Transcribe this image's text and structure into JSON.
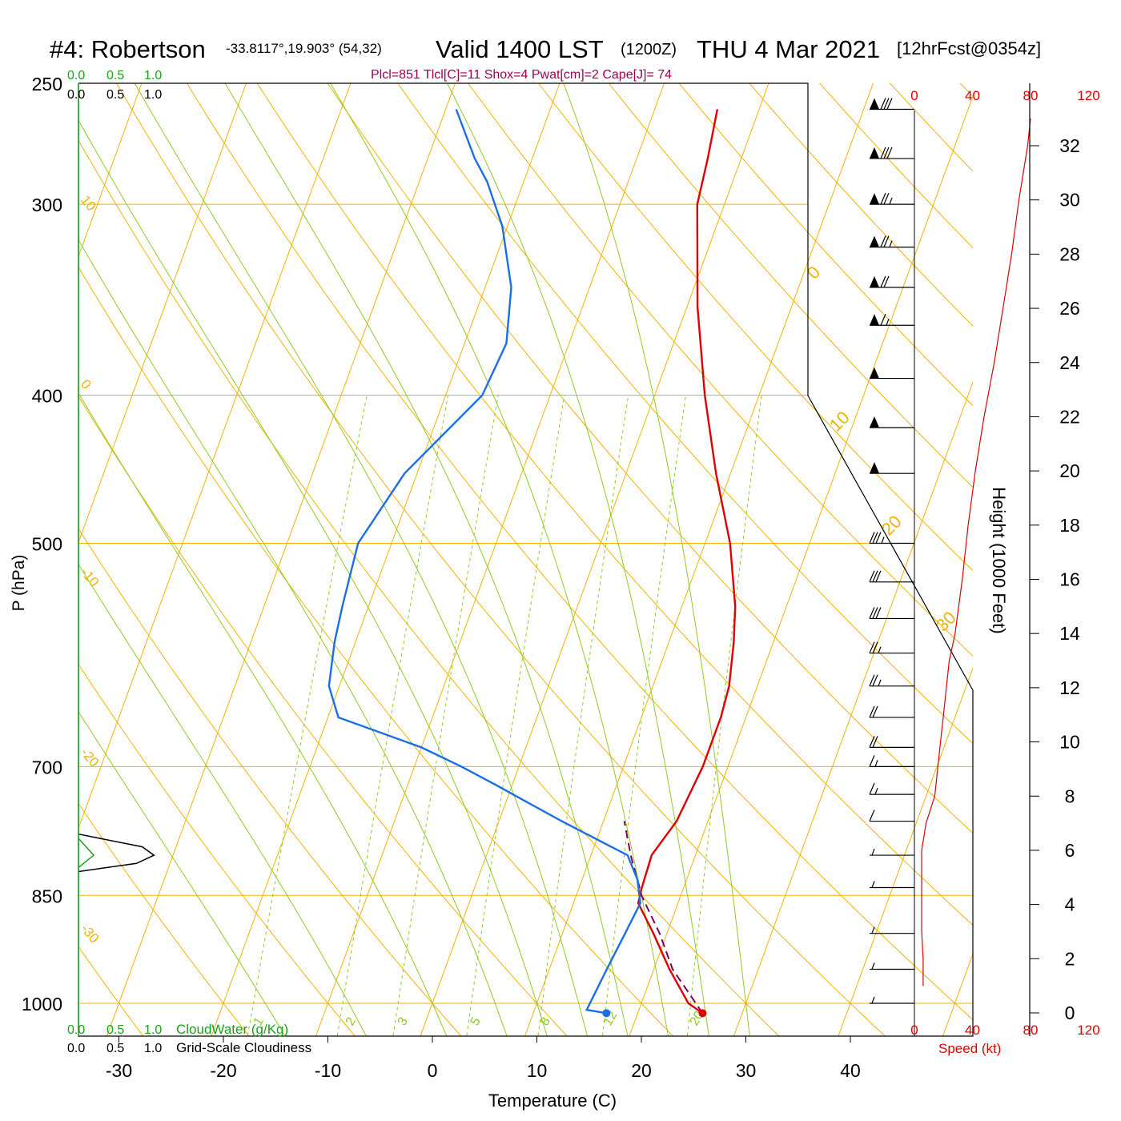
{
  "header": {
    "station": "#4: Robertson",
    "coords": "-33.8117°,19.903° (54,32)",
    "valid": "Valid 1400 LST",
    "zulu": "(1200Z)",
    "date": "THU 4 Mar 2021",
    "forecast": "[12hrFcst@0354z]",
    "indices": "Plcl=851 Tlcl[C]=11 Shox=4 Pwat[cm]=2 Cape[J]= 74"
  },
  "colors": {
    "temperature": "#e00000",
    "dewpoint": "#1a6fe6",
    "parcel": "#800060",
    "isotherm": "#f2b400",
    "dry_adiabat": "#f2b400",
    "moist_adiabat": "#8fcc20",
    "mixing_ratio": "#8fcc20",
    "cloud_water": "#1aa31a",
    "speed": "#e00000",
    "indices": "#a00050",
    "frame": "#000000"
  },
  "chart_data": {
    "type": "skew-t",
    "xlabel": "Temperature (C)",
    "ylabel": "P (hPa)",
    "xlim": [
      -35,
      45
    ],
    "ylim": [
      1000,
      250
    ],
    "x_ticks": [
      "-30",
      "-20",
      "-10",
      "0",
      "10",
      "20",
      "30",
      "40"
    ],
    "y_ticks": [
      "250",
      "300",
      "400",
      "500",
      "700",
      "850",
      "1000"
    ],
    "y_tick_values": [
      250,
      300,
      400,
      500,
      700,
      850,
      1000
    ],
    "dry_adiabat_labels": [
      "10",
      "0",
      "-10",
      "-20",
      "-30"
    ],
    "upper_isotherm_labels": [
      "0",
      "10",
      "20",
      "30"
    ],
    "mixing_ratio_labels": [
      "1",
      "2",
      "3",
      "5",
      "8",
      "12",
      "20"
    ],
    "mixing_ratio_values": [
      1,
      2,
      3,
      5,
      8,
      12,
      20
    ],
    "temperature": [
      [
        1015,
        26.2
      ],
      [
        1000,
        24.5
      ],
      [
        950,
        21.5
      ],
      [
        900,
        18.7
      ],
      [
        860,
        16.2
      ],
      [
        840,
        16.0
      ],
      [
        800,
        15.8
      ],
      [
        760,
        17.0
      ],
      [
        700,
        17.6
      ],
      [
        650,
        17.6
      ],
      [
        620,
        17.3
      ],
      [
        580,
        16.2
      ],
      [
        550,
        15.1
      ],
      [
        500,
        12.4
      ],
      [
        450,
        8.6
      ],
      [
        400,
        4.8
      ],
      [
        350,
        1.0
      ],
      [
        300,
        -2.6
      ],
      [
        280,
        -3.2
      ],
      [
        260,
        -4.0
      ]
    ],
    "dewpoint": [
      [
        1015,
        17.0
      ],
      [
        1010,
        15.0
      ],
      [
        950,
        15.5
      ],
      [
        900,
        16.0
      ],
      [
        860,
        16.4
      ],
      [
        830,
        15.3
      ],
      [
        800,
        13.5
      ],
      [
        760,
        6.0
      ],
      [
        720,
        -1.5
      ],
      [
        700,
        -5.5
      ],
      [
        680,
        -10.0
      ],
      [
        650,
        -19.0
      ],
      [
        620,
        -21.0
      ],
      [
        580,
        -22.0
      ],
      [
        550,
        -22.5
      ],
      [
        500,
        -23.2
      ],
      [
        450,
        -21.2
      ],
      [
        400,
        -16.5
      ],
      [
        370,
        -16.0
      ],
      [
        340,
        -17.5
      ],
      [
        310,
        -20.5
      ],
      [
        290,
        -23.5
      ],
      [
        280,
        -25.5
      ],
      [
        260,
        -29.0
      ]
    ],
    "parcel": [
      [
        1015,
        26.2
      ],
      [
        950,
        21.8
      ],
      [
        900,
        19.3
      ],
      [
        851,
        16.3
      ],
      [
        800,
        13.8
      ],
      [
        760,
        12.0
      ]
    ],
    "surface_points": {
      "temperature": [
        1015,
        26.2
      ],
      "dewpoint": [
        1015,
        17.0
      ]
    },
    "wind_barbs": [
      {
        "pressure": 260,
        "speed": 80
      },
      {
        "pressure": 280,
        "speed": 80
      },
      {
        "pressure": 300,
        "speed": 75
      },
      {
        "pressure": 320,
        "speed": 75
      },
      {
        "pressure": 340,
        "speed": 70
      },
      {
        "pressure": 360,
        "speed": 65
      },
      {
        "pressure": 390,
        "speed": 50
      },
      {
        "pressure": 420,
        "speed": 50
      },
      {
        "pressure": 450,
        "speed": 50
      },
      {
        "pressure": 500,
        "speed": 35
      },
      {
        "pressure": 530,
        "speed": 30
      },
      {
        "pressure": 560,
        "speed": 30
      },
      {
        "pressure": 590,
        "speed": 25
      },
      {
        "pressure": 620,
        "speed": 25
      },
      {
        "pressure": 650,
        "speed": 20
      },
      {
        "pressure": 680,
        "speed": 20
      },
      {
        "pressure": 700,
        "speed": 15
      },
      {
        "pressure": 730,
        "speed": 15
      },
      {
        "pressure": 760,
        "speed": 10
      },
      {
        "pressure": 800,
        "speed": 5
      },
      {
        "pressure": 840,
        "speed": 5
      },
      {
        "pressure": 900,
        "speed": 5
      },
      {
        "pressure": 950,
        "speed": 5
      },
      {
        "pressure": 1000,
        "speed": 5
      }
    ],
    "speed_profile": {
      "xlabel": "Speed (kt)",
      "x_ticks": [
        "0",
        "40",
        "80",
        "120"
      ],
      "x_tick_values": [
        0,
        40,
        80,
        120
      ],
      "points": [
        [
          1,
          6
        ],
        [
          2,
          6
        ],
        [
          3,
          5
        ],
        [
          5,
          5
        ],
        [
          6,
          5
        ],
        [
          7,
          8
        ],
        [
          8,
          14
        ],
        [
          9,
          16
        ],
        [
          10,
          18
        ],
        [
          11,
          20
        ],
        [
          12,
          22
        ],
        [
          13,
          24
        ],
        [
          14,
          28
        ],
        [
          16,
          33
        ],
        [
          18,
          37
        ],
        [
          20,
          42
        ],
        [
          22,
          48
        ],
        [
          24,
          55
        ],
        [
          26,
          61
        ],
        [
          28,
          67
        ],
        [
          30,
          72
        ],
        [
          32,
          78
        ],
        [
          33,
          80
        ]
      ]
    },
    "height_axis": {
      "label": "Height (1000 Feet)",
      "ticks": [
        "0",
        "2",
        "4",
        "6",
        "8",
        "10",
        "12",
        "14",
        "16",
        "18",
        "20",
        "22",
        "24",
        "26",
        "28",
        "30",
        "32"
      ],
      "tick_values": [
        0,
        2,
        4,
        6,
        8,
        10,
        12,
        14,
        16,
        18,
        20,
        22,
        24,
        26,
        28,
        30,
        32
      ]
    },
    "cloud_water": {
      "label": "CloudWater (g/Kg)",
      "scale_ticks": [
        "0.0",
        "0.5",
        "1.0"
      ],
      "profile": [
        [
          780,
          0
        ],
        [
          790,
          0.05
        ],
        [
          800,
          0.1
        ],
        [
          815,
          0.0
        ]
      ]
    },
    "cloudiness": {
      "label": "Grid-Scale Cloudiness",
      "scale_ticks": [
        "0.0",
        "0.5",
        "1.0"
      ],
      "profile": [
        [
          775,
          0
        ],
        [
          790,
          0.55
        ],
        [
          800,
          0.65
        ],
        [
          810,
          0.5
        ],
        [
          820,
          0.0
        ]
      ]
    }
  }
}
